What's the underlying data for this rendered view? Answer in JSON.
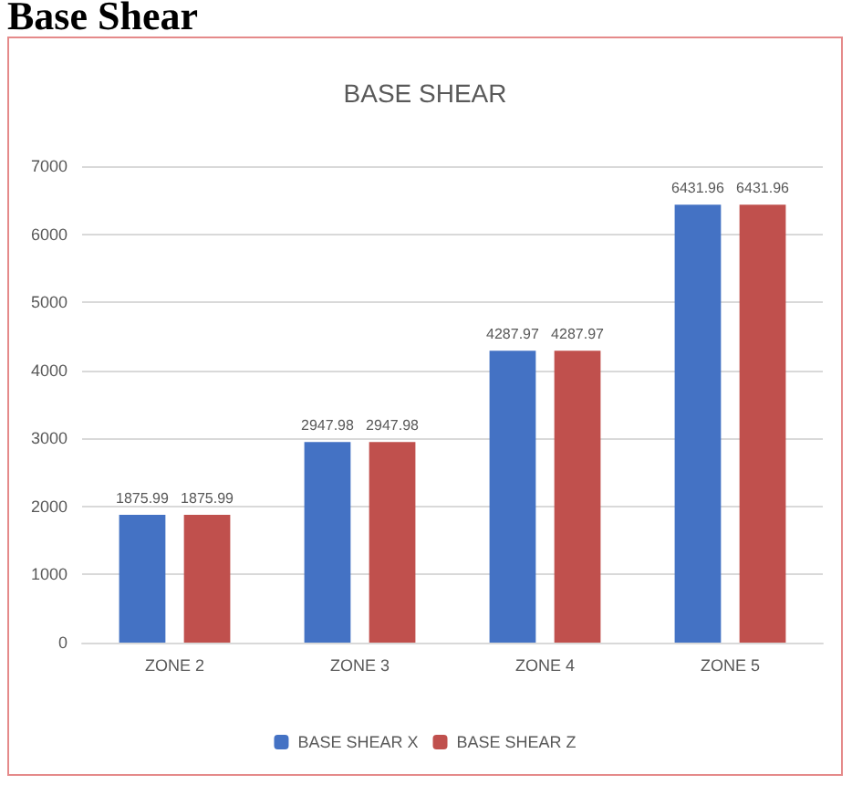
{
  "chart_data": {
    "type": "bar",
    "title": "BASE SHEAR",
    "annotations": [
      "Base Shear"
    ],
    "categories": [
      "ZONE 2",
      "ZONE 3",
      "ZONE 4",
      "ZONE 5"
    ],
    "series": [
      {
        "name": "BASE SHEAR X",
        "color": "#4472c4",
        "values": [
          1875.99,
          2947.98,
          4287.97,
          6431.96
        ]
      },
      {
        "name": "BASE SHEAR Z",
        "color": "#c0504d",
        "values": [
          1875.99,
          2947.98,
          4287.97,
          6431.96
        ]
      }
    ],
    "ylim": [
      0,
      7000
    ],
    "yticks": [
      0,
      1000,
      2000,
      3000,
      4000,
      5000,
      6000,
      7000
    ],
    "grid": "y",
    "legend": "bottom",
    "data_labels": true
  }
}
